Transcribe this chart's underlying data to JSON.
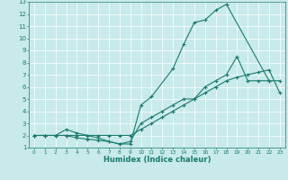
{
  "xlabel": "Humidex (Indice chaleur)",
  "ylabel": "",
  "bg_color": "#c8eaea",
  "line_color": "#1a7a6e",
  "grid_color": "#ffffff",
  "xlim": [
    -0.5,
    23.5
  ],
  "ylim": [
    1,
    13
  ],
  "xticks": [
    0,
    1,
    2,
    3,
    4,
    5,
    6,
    7,
    8,
    9,
    10,
    11,
    12,
    13,
    14,
    15,
    16,
    17,
    18,
    19,
    20,
    21,
    22,
    23
  ],
  "yticks": [
    1,
    2,
    3,
    4,
    5,
    6,
    7,
    8,
    9,
    10,
    11,
    12,
    13
  ],
  "line1_x": [
    0,
    1,
    2,
    3,
    4,
    5,
    6,
    7,
    8,
    9,
    10,
    11,
    13,
    14,
    15,
    16,
    17,
    18,
    22,
    23
  ],
  "line1_y": [
    2,
    2,
    2,
    2,
    1.8,
    1.7,
    1.6,
    1.5,
    1.3,
    1.3,
    4.5,
    5.2,
    7.5,
    9.5,
    11.3,
    11.5,
    12.3,
    12.8,
    6.5,
    6.5
  ],
  "line2_x": [
    0,
    1,
    2,
    3,
    4,
    5,
    6,
    7,
    8,
    9,
    10,
    11,
    12,
    13,
    14,
    15,
    16,
    17,
    18,
    19,
    20,
    21,
    22,
    23
  ],
  "line2_y": [
    2,
    2,
    2,
    2,
    2,
    2,
    2,
    2,
    2,
    2,
    2.5,
    3,
    3.5,
    4,
    4.5,
    5,
    5.5,
    6,
    6.5,
    6.8,
    7,
    7.2,
    7.4,
    5.5
  ],
  "line3_x": [
    0,
    1,
    2,
    3,
    4,
    5,
    6,
    7,
    8,
    9,
    10,
    11,
    12,
    13,
    14,
    15,
    16,
    17,
    18,
    19,
    20,
    21,
    22
  ],
  "line3_y": [
    2,
    2,
    2,
    2.5,
    2.2,
    2,
    1.8,
    1.5,
    1.3,
    1.5,
    3,
    3.5,
    4,
    4.5,
    5,
    5,
    6,
    6.5,
    7,
    8.5,
    6.5,
    6.5,
    6.5
  ],
  "xlabel_fontsize": 6,
  "tick_fontsize_x": 4.2,
  "tick_fontsize_y": 5
}
